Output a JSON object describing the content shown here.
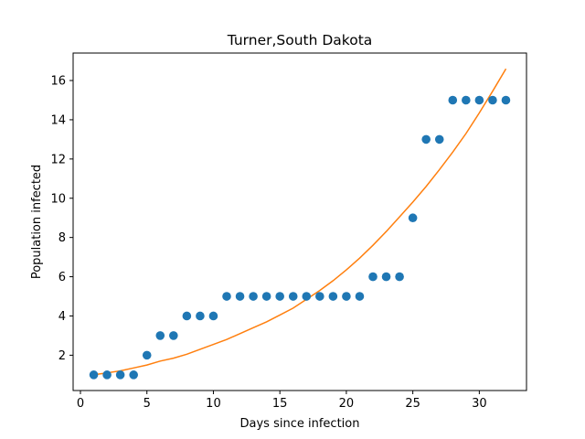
{
  "chart_data": {
    "type": "scatter",
    "title": "Turner,South Dakota",
    "xlabel": "Days since infection",
    "ylabel": "Population infected",
    "xlim": [
      -0.55,
      33.55
    ],
    "ylim": [
      0.2,
      17.4
    ],
    "xticks": [
      0,
      5,
      10,
      15,
      20,
      25,
      30
    ],
    "yticks": [
      2,
      4,
      6,
      8,
      10,
      12,
      14,
      16
    ],
    "grid": false,
    "series": [
      {
        "kind": "scatter",
        "color": "#1f77b4",
        "x": [
          1,
          2,
          3,
          4,
          5,
          6,
          7,
          8,
          9,
          10,
          11,
          12,
          13,
          14,
          15,
          16,
          17,
          18,
          19,
          20,
          21,
          22,
          23,
          24,
          25,
          26,
          27,
          28,
          29,
          30,
          31,
          32
        ],
        "y": [
          1,
          1,
          1,
          1,
          2,
          3,
          3,
          4,
          4,
          4,
          5,
          5,
          5,
          5,
          5,
          5,
          5,
          5,
          5,
          5,
          5,
          6,
          6,
          6,
          9,
          13,
          13,
          15,
          15,
          15,
          15,
          15
        ]
      },
      {
        "kind": "line",
        "color": "#ff7f0e",
        "x": [
          1,
          2,
          3,
          4,
          5,
          6,
          7,
          8,
          9,
          10,
          11,
          12,
          13,
          14,
          15,
          16,
          17,
          18,
          19,
          20,
          21,
          22,
          23,
          24,
          25,
          26,
          27,
          28,
          29,
          30,
          31,
          32
        ],
        "y": [
          1.0,
          1.1,
          1.2,
          1.35,
          1.5,
          1.7,
          1.85,
          2.05,
          2.3,
          2.55,
          2.8,
          3.1,
          3.4,
          3.7,
          4.05,
          4.4,
          4.85,
          5.3,
          5.8,
          6.35,
          6.95,
          7.6,
          8.3,
          9.05,
          9.8,
          10.6,
          11.45,
          12.35,
          13.3,
          14.35,
          15.45,
          16.6
        ]
      }
    ]
  }
}
